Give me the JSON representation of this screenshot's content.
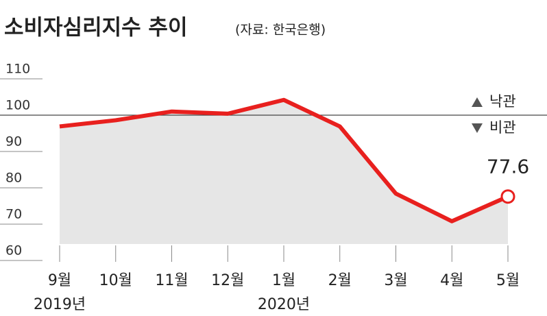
{
  "chart_data": {
    "type": "line",
    "title": "소비자심리지수 추이",
    "subtitle": "(자료: 한국은행)",
    "categories": [
      "9월",
      "10월",
      "11월",
      "12월",
      "1월",
      "2월",
      "3월",
      "4월",
      "5월"
    ],
    "year_labels": [
      "2019년",
      null,
      null,
      null,
      "2020년",
      null,
      null,
      null,
      null
    ],
    "series": [
      {
        "color": "#e8201e",
        "fill": "#e6e6e6",
        "values": [
          96.9,
          98.6,
          101.0,
          100.4,
          104.2,
          96.9,
          78.4,
          70.8,
          77.6
        ]
      }
    ],
    "ylim": [
      60,
      110
    ],
    "yticks": [
      60,
      70,
      80,
      90,
      100,
      110
    ],
    "reference_line": 100,
    "legend": [
      "낙관",
      "비관"
    ],
    "grid": true
  }
}
